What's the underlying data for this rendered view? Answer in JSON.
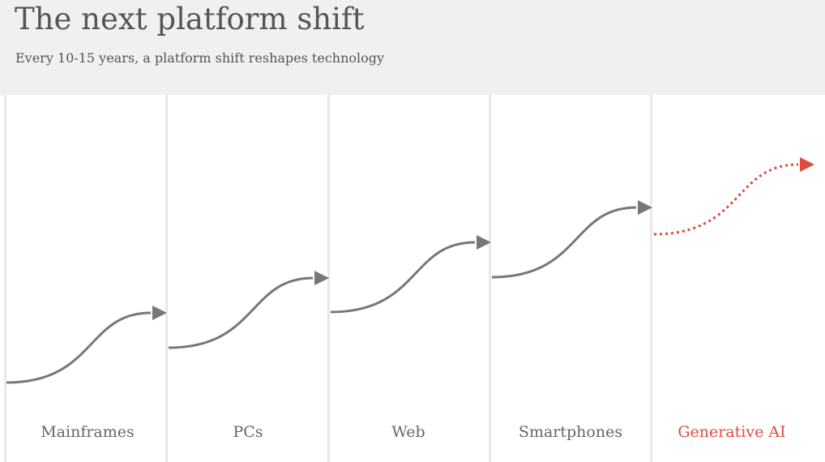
{
  "header": {
    "title": "The next platform shift",
    "subtitle": "Every 10-15 years, a platform shift reshapes technology"
  },
  "stages": [
    {
      "label": "Mainframes",
      "highlight": false
    },
    {
      "label": "PCs",
      "highlight": false
    },
    {
      "label": "Web",
      "highlight": false
    },
    {
      "label": "Smartphones",
      "highlight": false
    },
    {
      "label": "Generative AI",
      "highlight": true
    }
  ],
  "colors": {
    "arrow": "#777777",
    "highlight": "#e04a3f",
    "header_bg": "#f0f0f0",
    "divider": "#e8e8e8"
  }
}
